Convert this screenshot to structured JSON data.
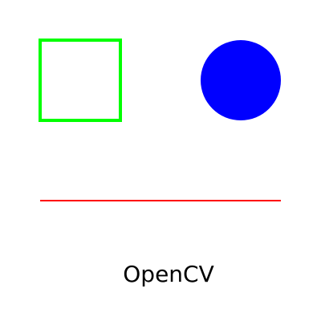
{
  "canvas": {
    "background": "#ffffff"
  },
  "shapes": {
    "rectangle": {
      "kind": "rectangle",
      "style": "outline",
      "color": "#00ff00"
    },
    "circle": {
      "kind": "circle",
      "style": "filled",
      "color": "#0000ff"
    },
    "line": {
      "kind": "line",
      "color": "#ff0000"
    }
  },
  "caption": {
    "text": "OpenCV",
    "color": "#000000"
  }
}
